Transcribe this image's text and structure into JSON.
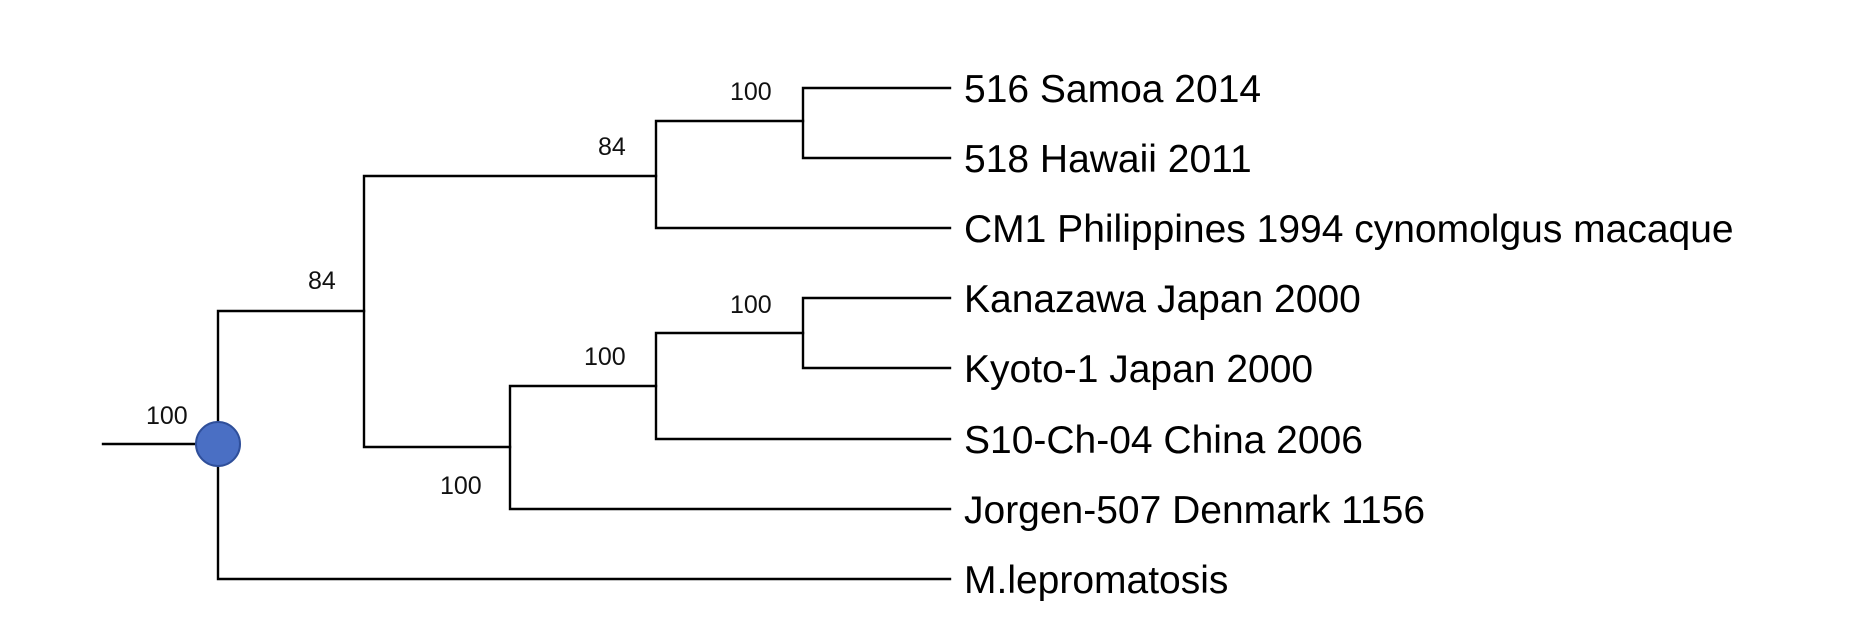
{
  "tree": {
    "taxa": [
      {
        "id": "t1",
        "label": "516 Samoa 2014"
      },
      {
        "id": "t2",
        "label": "518 Hawaii 2011"
      },
      {
        "id": "t3",
        "label": "CM1 Philippines 1994 cynomolgus macaque"
      },
      {
        "id": "t4",
        "label": "Kanazawa Japan 2000"
      },
      {
        "id": "t5",
        "label": "Kyoto-1 Japan 2000"
      },
      {
        "id": "t6",
        "label": "S10-Ch-04 China 2006"
      },
      {
        "id": "t7",
        "label": "Jorgen-507 Denmark 1156"
      },
      {
        "id": "t8",
        "label": "M.lepromatosis"
      }
    ],
    "clades": [
      {
        "id": "samoa-hawaii",
        "members": [
          "t1",
          "t2"
        ],
        "support": "100"
      },
      {
        "id": "samoa-hawaii-cm1",
        "members": [
          "t1",
          "t2",
          "t3"
        ],
        "support": "84"
      },
      {
        "id": "kanazawa-kyoto",
        "members": [
          "t4",
          "t5"
        ],
        "support": "100"
      },
      {
        "id": "kanazawa-kyoto-china",
        "members": [
          "t4",
          "t5",
          "t6"
        ],
        "support": "100"
      },
      {
        "id": "asia-denmark",
        "members": [
          "t4",
          "t5",
          "t6",
          "t7"
        ],
        "support": "100"
      },
      {
        "id": "leprae",
        "members": [
          "t1",
          "t2",
          "t3",
          "t4",
          "t5",
          "t6",
          "t7"
        ],
        "support": "84"
      },
      {
        "id": "root",
        "members": [
          "t1",
          "t2",
          "t3",
          "t4",
          "t5",
          "t6",
          "t7",
          "t8"
        ],
        "support": "100"
      }
    ],
    "colors": {
      "branch": "#000000",
      "root_marker_fill": "#4a6fc4",
      "root_marker_stroke": "#2f4f9a"
    }
  }
}
